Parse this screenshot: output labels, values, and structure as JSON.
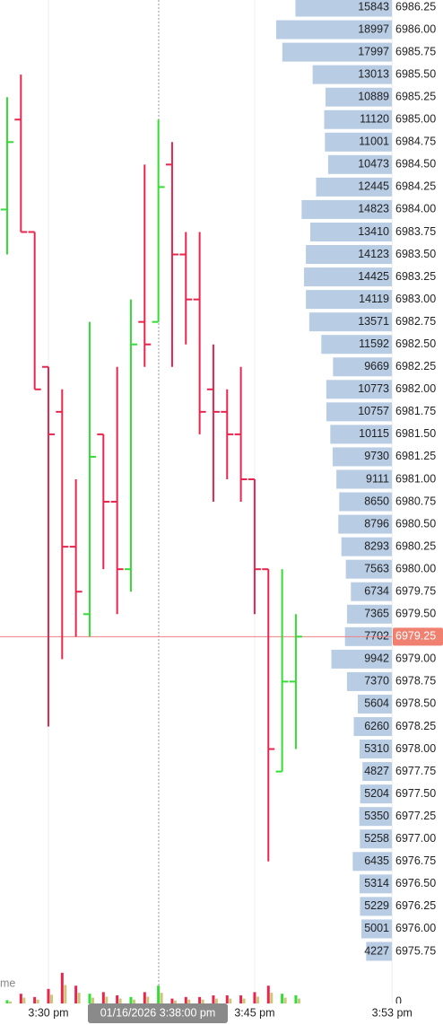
{
  "chart_data": {
    "type": "ohlc",
    "categories": [
      null,
      null,
      null,
      "3:30 pm",
      null,
      null,
      null,
      null,
      null,
      null,
      null,
      null,
      null,
      null,
      null,
      null,
      null,
      null,
      "3:45 pm",
      null,
      null,
      null,
      null,
      null,
      null,
      null,
      null,
      null,
      "3:53 pm"
    ],
    "crosshair_label": "01/16/2026 3:38:00 pm",
    "up_color": "#33dd33",
    "down_color": "#e8264d",
    "ohlc": [
      [
        6984.0,
        6985.25,
        6983.5,
        6984.75
      ],
      [
        6985.0,
        6985.5,
        6983.75,
        6983.75
      ],
      [
        6983.75,
        6983.75,
        6982.0,
        6982.0
      ],
      [
        6982.25,
        6982.25,
        6978.25,
        6981.5
      ],
      [
        6981.75,
        6982.0,
        6979.0,
        6980.25
      ],
      [
        6980.25,
        6981.0,
        6979.25,
        6979.75
      ],
      [
        6979.5,
        6982.75,
        6979.25,
        6981.25
      ],
      [
        6981.5,
        6981.5,
        6980.0,
        6980.75
      ],
      [
        6980.75,
        6982.25,
        6979.5,
        6980.0
      ],
      [
        6980.0,
        6983.0,
        6979.75,
        6982.5
      ],
      [
        6982.75,
        6984.5,
        6982.25,
        6982.5
      ],
      [
        6982.75,
        6985.0,
        6982.75,
        6984.25
      ],
      [
        6984.5,
        6984.75,
        6982.25,
        6983.5
      ],
      [
        6983.5,
        6983.75,
        6982.5,
        6983.0
      ],
      [
        6983.0,
        6983.75,
        6981.5,
        6981.75
      ],
      [
        6982.0,
        6982.5,
        6980.75,
        6981.75
      ],
      [
        6981.75,
        6982.0,
        6981.0,
        6981.5
      ],
      [
        6981.5,
        6982.25,
        6980.75,
        6981.0
      ],
      [
        6981.0,
        6981.0,
        6979.5,
        6980.0
      ],
      [
        6980.0,
        6980.0,
        6976.75,
        6978.0
      ],
      [
        6977.75,
        6980.0,
        6977.75,
        6978.75
      ],
      [
        6978.75,
        6979.5,
        6978.0,
        6979.25
      ],
      null,
      null,
      null,
      null,
      null,
      null,
      null
    ],
    "volume": [
      4,
      12,
      8,
      18,
      38,
      22,
      12,
      14,
      10,
      8,
      14,
      22,
      6,
      8,
      8,
      10,
      10,
      10,
      14,
      22,
      12,
      10,
      null,
      null,
      null,
      null,
      null,
      null,
      null
    ],
    "volume_ylim": [
      0,
      40
    ],
    "volume_yticks": [
      0
    ],
    "volume_label": "me",
    "ylim": [
      6975.55,
      6986.33
    ],
    "last_price": 6979.25,
    "yticks": [
      6986.25,
      {
        "value": 6986.0,
        "label": "6986.00"
      },
      6985.75,
      {
        "value": 6985.5,
        "label": "6985.50"
      },
      6985.25,
      {
        "value": 6985.0,
        "label": "6985.00"
      },
      6984.75,
      {
        "value": 6984.5,
        "label": "6984.50"
      },
      6984.25,
      {
        "value": 6984.0,
        "label": "6984.00"
      },
      6983.75,
      {
        "value": 6983.5,
        "label": "6983.50"
      },
      6983.25,
      {
        "value": 6983.0,
        "label": "6983.00"
      },
      6982.75,
      {
        "value": 6982.5,
        "label": "6982.50"
      },
      6982.25,
      {
        "value": 6982.0,
        "label": "6982.00"
      },
      6981.75,
      {
        "value": 6981.5,
        "label": "6981.50"
      },
      6981.25,
      {
        "value": 6981.0,
        "label": "6981.00"
      },
      6980.75,
      {
        "value": 6980.5,
        "label": "6980.50"
      },
      6980.25,
      {
        "value": 6980.0,
        "label": "6980.00"
      },
      6979.75,
      {
        "value": 6979.5,
        "label": "6979.50"
      },
      6979.25,
      {
        "value": 6979.0,
        "label": "6979.00"
      },
      6978.75,
      {
        "value": 6978.5,
        "label": "6978.50"
      },
      6978.25,
      {
        "value": 6978.0,
        "label": "6978.00"
      },
      6977.75,
      {
        "value": 6977.5,
        "label": "6977.50"
      },
      6977.25,
      {
        "value": 6977.0,
        "label": "6977.00"
      },
      6976.75,
      {
        "value": 6976.5,
        "label": "6976.50"
      },
      6976.25,
      {
        "value": 6976.0,
        "label": "6976.00"
      },
      6975.75
    ],
    "profile": [
      15843,
      18997,
      17997,
      13013,
      10889,
      11120,
      11001,
      10473,
      12445,
      14823,
      13410,
      14123,
      14425,
      14119,
      13571,
      11592,
      9669,
      10773,
      10757,
      10115,
      9730,
      9111,
      8650,
      8796,
      8293,
      7563,
      6734,
      7365,
      7702,
      9942,
      7370,
      5604,
      6260,
      5310,
      4827,
      5204,
      5350,
      5258,
      6435,
      5314,
      5229,
      5001,
      4227
    ],
    "profile_color": "#b8cce4"
  }
}
